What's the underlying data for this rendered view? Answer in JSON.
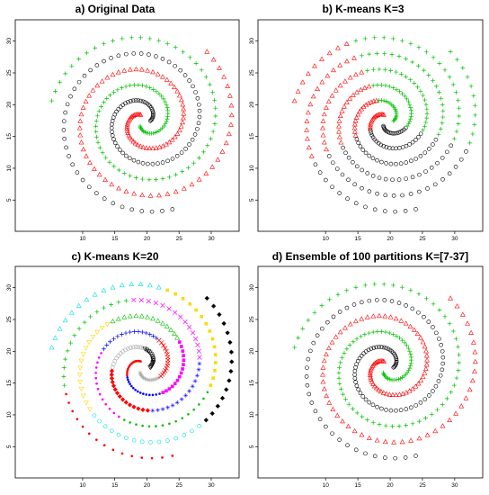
{
  "chart_data": [
    {
      "type": "scatter",
      "title": "a) Original Data",
      "xticks": [
        10,
        15,
        20,
        25,
        30
      ],
      "yticks": [
        5,
        10,
        15,
        20,
        25,
        30
      ],
      "xlim": [
        1.2,
        33.5
      ],
      "ylim": [
        1.5,
        32.5
      ],
      "clusters": "true_labels",
      "series": [
        {
          "arm": 1,
          "color": "#ff0000",
          "symbol": "triangle"
        },
        {
          "arm": 2,
          "color": "#00c000",
          "symbol": "plus"
        },
        {
          "arm": 3,
          "color": "#000000",
          "symbol": "circle"
        }
      ]
    },
    {
      "type": "scatter",
      "title": "b) K-means K=3",
      "xticks": [
        10,
        15,
        20,
        25,
        30
      ],
      "yticks": [
        5,
        10,
        15,
        20,
        25,
        30
      ],
      "xlim": [
        1.2,
        33.5
      ],
      "ylim": [
        1.5,
        32.5
      ],
      "clusters": "kmeans3",
      "series": [
        {
          "cluster": "red",
          "color": "#ff0000",
          "symbol": "triangle"
        },
        {
          "cluster": "green",
          "color": "#00c000",
          "symbol": "plus"
        },
        {
          "cluster": "black",
          "color": "#000000",
          "symbol": "circle"
        }
      ]
    },
    {
      "type": "scatter",
      "title": "c) K-means K=20",
      "xticks": [
        10,
        15,
        20,
        25,
        30
      ],
      "yticks": [
        5,
        10,
        15,
        20,
        25,
        30
      ],
      "xlim": [
        1.2,
        33.5
      ],
      "ylim": [
        1.5,
        32.5
      ],
      "clusters": "kmeans20",
      "palette": [
        "#ff0000",
        "#0000ff",
        "#ff00ff",
        "#00c000",
        "#ffd800",
        "#00e0e0",
        "#000000",
        "#a8a8a8",
        "#ff0000",
        "#0000ff",
        "#ff00ff",
        "#00c000",
        "#ffd800",
        "#00e0e0",
        "#000000",
        "#a8a8a8",
        "#ff0000",
        "#0000ff",
        "#ff00ff",
        "#00c000"
      ]
    },
    {
      "type": "scatter",
      "title": "d) Ensemble of 100 partitions K=[7-37]",
      "xticks": [
        10,
        15,
        20,
        25,
        30
      ],
      "yticks": [
        5,
        10,
        15,
        20,
        25,
        30
      ],
      "xlim": [
        1.2,
        33.5
      ],
      "ylim": [
        1.5,
        32.5
      ],
      "clusters": "true_labels",
      "series": [
        {
          "arm": 1,
          "color": "#ff0000",
          "symbol": "triangle"
        },
        {
          "arm": 2,
          "color": "#00c000",
          "symbol": "plus"
        },
        {
          "arm": 3,
          "color": "#000000",
          "symbol": "circle"
        }
      ]
    }
  ],
  "spiral": {
    "center": [
      19.5,
      17.5
    ],
    "points_per_arm": 104,
    "theta_start": 0.85,
    "theta_end": 12.2,
    "radius_per_radian": 1.2
  }
}
